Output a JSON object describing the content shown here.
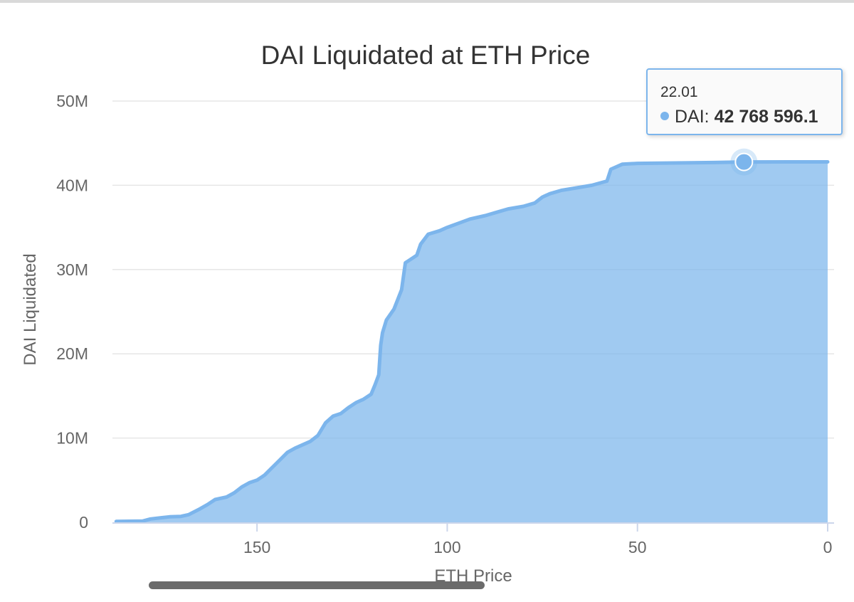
{
  "chart_data": {
    "type": "area",
    "title": "DAI Liquidated at ETH Price",
    "xlabel": "ETH Price",
    "ylabel": "DAI Liquidated",
    "x_reversed": true,
    "xlim": [
      188,
      0
    ],
    "ylim": [
      0,
      50000000
    ],
    "x_ticks": [
      {
        "value": 150,
        "label": "150"
      },
      {
        "value": 100,
        "label": "100"
      },
      {
        "value": 50,
        "label": "50"
      },
      {
        "value": 0,
        "label": "0"
      }
    ],
    "y_ticks": [
      {
        "value": 0,
        "label": "0"
      },
      {
        "value": 10000000,
        "label": "10M"
      },
      {
        "value": 20000000,
        "label": "20M"
      },
      {
        "value": 30000000,
        "label": "30M"
      },
      {
        "value": 40000000,
        "label": "40M"
      },
      {
        "value": 50000000,
        "label": "50M"
      }
    ],
    "grid": true,
    "legend": false,
    "series": [
      {
        "name": "DAI",
        "color": "#7cb5ec",
        "points": [
          [
            187,
            100000
          ],
          [
            180,
            150000
          ],
          [
            178,
            400000
          ],
          [
            175,
            550000
          ],
          [
            173,
            650000
          ],
          [
            170,
            700000
          ],
          [
            168,
            900000
          ],
          [
            165,
            1600000
          ],
          [
            163,
            2100000
          ],
          [
            161,
            2700000
          ],
          [
            158,
            3000000
          ],
          [
            156,
            3500000
          ],
          [
            154,
            4200000
          ],
          [
            152,
            4700000
          ],
          [
            150,
            5000000
          ],
          [
            148,
            5600000
          ],
          [
            146,
            6500000
          ],
          [
            144,
            7400000
          ],
          [
            142,
            8300000
          ],
          [
            140,
            8800000
          ],
          [
            138,
            9200000
          ],
          [
            136,
            9600000
          ],
          [
            134,
            10300000
          ],
          [
            132,
            11800000
          ],
          [
            130,
            12600000
          ],
          [
            128,
            12900000
          ],
          [
            126,
            13600000
          ],
          [
            124,
            14200000
          ],
          [
            122,
            14600000
          ],
          [
            120,
            15200000
          ],
          [
            119,
            16300000
          ],
          [
            118,
            17500000
          ],
          [
            117.5,
            21000000
          ],
          [
            117,
            22500000
          ],
          [
            116,
            24000000
          ],
          [
            114,
            25300000
          ],
          [
            112,
            27600000
          ],
          [
            111,
            30800000
          ],
          [
            110,
            31100000
          ],
          [
            108,
            31700000
          ],
          [
            107,
            33000000
          ],
          [
            105,
            34200000
          ],
          [
            102,
            34600000
          ],
          [
            100,
            35000000
          ],
          [
            97,
            35500000
          ],
          [
            94,
            36000000
          ],
          [
            90,
            36400000
          ],
          [
            87,
            36800000
          ],
          [
            84,
            37200000
          ],
          [
            80,
            37500000
          ],
          [
            77,
            37900000
          ],
          [
            75,
            38600000
          ],
          [
            73,
            39000000
          ],
          [
            70,
            39400000
          ],
          [
            66,
            39700000
          ],
          [
            62,
            40000000
          ],
          [
            58,
            40500000
          ],
          [
            57,
            41900000
          ],
          [
            54,
            42500000
          ],
          [
            50,
            42600000
          ],
          [
            40,
            42650000
          ],
          [
            30,
            42700000
          ],
          [
            22.01,
            42768596.1
          ],
          [
            10,
            42780000
          ],
          [
            0,
            42780000
          ]
        ]
      }
    ]
  },
  "tooltip": {
    "x_label": "22.01",
    "series_name": "DAI:",
    "value_label": "42 768 596.1",
    "point": {
      "x": 22.01,
      "y": 42768596.1
    }
  }
}
